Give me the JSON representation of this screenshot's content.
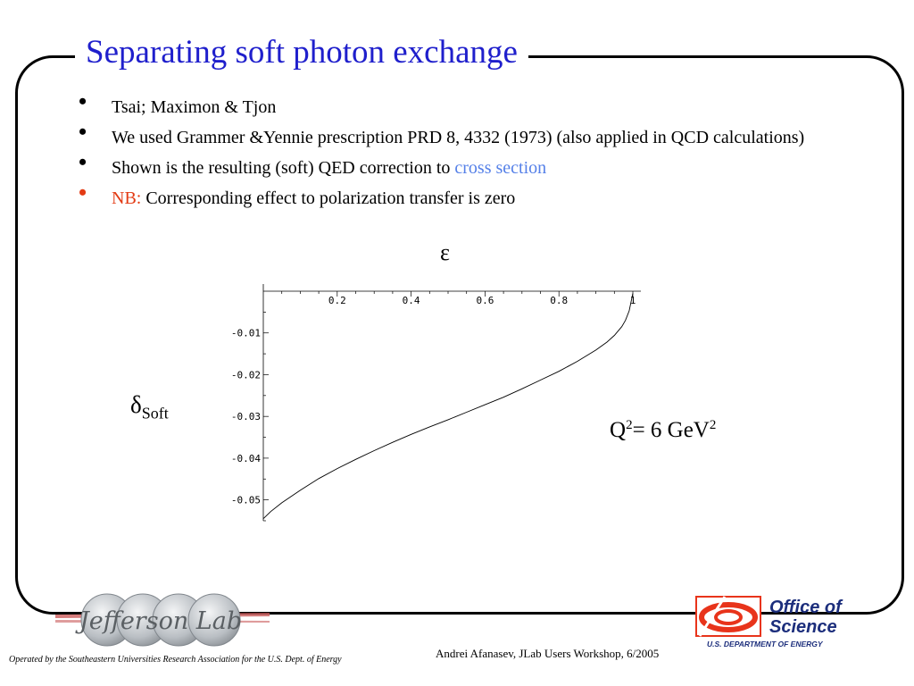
{
  "slide": {
    "title": "Separating soft photon exchange",
    "bullets": [
      {
        "text": "Tsai; Maximon & Tjon"
      },
      {
        "text": "We used Grammer &Yennie prescription PRD 8, 4332 (1973) (also applied in QCD calculations)"
      },
      {
        "text": "Shown is the resulting (soft) QED correction to ",
        "highlight": "cross section"
      },
      {
        "prefix": "NB:",
        "text": " Corresponding effect to polarization transfer is zero"
      }
    ],
    "bullet_glyph": "•",
    "epsilon_label": "ε",
    "delta_symbol": "δ",
    "delta_subscript": "Soft",
    "q2_label": {
      "q": "Q",
      "exp": "2",
      "mid": "= 6 GeV",
      "exp2": "2"
    },
    "footer": {
      "credit": "Andrei Afanasev, JLab Users Workshop, 6/2005",
      "operated_by": "Operated by the Southeastern Universities Research Association for the U.S. Dept. of Energy"
    },
    "logos": {
      "jlab": "Jefferson Lab",
      "osc_line1": "Office of",
      "osc_line2": "Science",
      "osc_line3": "U.S. DEPARTMENT OF ENERGY"
    },
    "colors": {
      "title": "#1f1fcc",
      "nb": "#e33b14",
      "highlight": "#5580e8",
      "osc_text": "#1c2e7c",
      "osc_mark": "#e8341b"
    }
  },
  "chart_data": {
    "type": "line",
    "xlim": [
      0,
      1
    ],
    "ylim": [
      -0.055,
      0
    ],
    "x_ticks": [
      {
        "v": 0.2,
        "label": "0.2"
      },
      {
        "v": 0.4,
        "label": "0.4"
      },
      {
        "v": 0.6,
        "label": "0.6"
      },
      {
        "v": 0.8,
        "label": "0.8"
      },
      {
        "v": 1.0,
        "label": "1"
      }
    ],
    "y_ticks": [
      {
        "v": -0.01,
        "label": "-0.01"
      },
      {
        "v": -0.02,
        "label": "-0.02"
      },
      {
        "v": -0.03,
        "label": "-0.03"
      },
      {
        "v": -0.04,
        "label": "-0.04"
      },
      {
        "v": -0.05,
        "label": "-0.05"
      }
    ],
    "x_label_position": "top",
    "series": [
      {
        "x": [
          0.0,
          0.02,
          0.05,
          0.1,
          0.15,
          0.2,
          0.25,
          0.3,
          0.35,
          0.4,
          0.45,
          0.5,
          0.55,
          0.6,
          0.65,
          0.7,
          0.75,
          0.8,
          0.85,
          0.9,
          0.93,
          0.95,
          0.97,
          0.98,
          0.99,
          1.0
        ],
        "y": [
          -0.0545,
          -0.0528,
          -0.0507,
          -0.0477,
          -0.0449,
          -0.0425,
          -0.0403,
          -0.0382,
          -0.0362,
          -0.0343,
          -0.0325,
          -0.0308,
          -0.029,
          -0.0272,
          -0.0254,
          -0.0234,
          -0.0213,
          -0.0192,
          -0.0168,
          -0.0141,
          -0.0122,
          -0.0106,
          -0.0085,
          -0.007,
          -0.0047,
          -0.0005
        ]
      }
    ]
  }
}
